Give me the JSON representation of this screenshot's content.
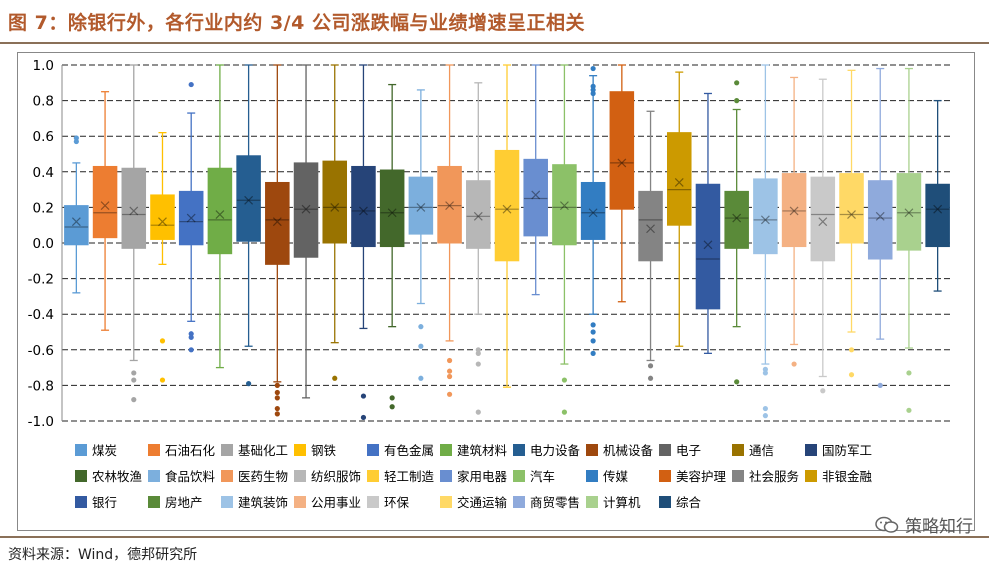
{
  "title": "图 7：除银行外，各行业内约 3/4 公司涨跌幅与业绩增速呈正相关",
  "source": "资料来源：Wind，德邦研究所",
  "watermark": "策略知行",
  "chart_data": {
    "type": "box",
    "ylim": [
      -1.0,
      1.0
    ],
    "yticks": [
      -1.0,
      -0.8,
      -0.6,
      -0.4,
      -0.2,
      0.0,
      0.2,
      0.4,
      0.6,
      0.8,
      1.0
    ],
    "ytick_labels": [
      "-1.0",
      "-0.8",
      "-0.6",
      "-0.4",
      "-0.2",
      "0.0",
      "0.2",
      "0.4",
      "0.6",
      "0.8",
      "1.0"
    ],
    "grid": "dashed-horizontal",
    "legend_position": "bottom",
    "series": [
      {
        "name": "煤炭",
        "color": "#5b9bd5",
        "min": -0.28,
        "q1": -0.01,
        "median": 0.09,
        "mean": 0.12,
        "q3": 0.21,
        "max": 0.45,
        "outliers": [
          0.59,
          0.57
        ]
      },
      {
        "name": "石油石化",
        "color": "#ed7d31",
        "min": -0.49,
        "q1": 0.03,
        "median": 0.17,
        "mean": 0.21,
        "q3": 0.43,
        "max": 0.85,
        "outliers": []
      },
      {
        "name": "基础化工",
        "color": "#a5a5a5",
        "min": -0.66,
        "q1": -0.03,
        "median": 0.16,
        "mean": 0.18,
        "q3": 0.42,
        "max": 1.0,
        "outliers": [
          -0.73,
          -0.77,
          -0.88
        ]
      },
      {
        "name": "钢铁",
        "color": "#ffc000",
        "min": -0.12,
        "q1": 0.02,
        "median": 0.1,
        "mean": 0.12,
        "q3": 0.27,
        "max": 0.62,
        "outliers": [
          -0.55,
          -0.77
        ]
      },
      {
        "name": "有色金属",
        "color": "#4472c4",
        "min": -0.44,
        "q1": -0.01,
        "median": 0.12,
        "mean": 0.14,
        "q3": 0.29,
        "max": 0.73,
        "outliers": [
          0.89,
          -0.51,
          -0.53,
          -0.6
        ]
      },
      {
        "name": "建筑材料",
        "color": "#70ad47",
        "min": -0.7,
        "q1": -0.06,
        "median": 0.13,
        "mean": 0.16,
        "q3": 0.42,
        "max": 1.0,
        "outliers": []
      },
      {
        "name": "电力设备",
        "color": "#255e91",
        "min": -0.58,
        "q1": 0.01,
        "median": 0.24,
        "mean": 0.24,
        "q3": 0.49,
        "max": 1.0,
        "outliers": [
          -0.79
        ]
      },
      {
        "name": "机械设备",
        "color": "#9e480e",
        "min": -0.78,
        "q1": -0.12,
        "median": 0.13,
        "mean": 0.12,
        "q3": 0.34,
        "max": 1.0,
        "outliers": [
          -0.8,
          -0.84,
          -0.87,
          -0.93,
          -0.96
        ]
      },
      {
        "name": "电子",
        "color": "#636363",
        "min": -0.87,
        "q1": -0.08,
        "median": 0.19,
        "mean": 0.19,
        "q3": 0.45,
        "max": 1.0,
        "outliers": []
      },
      {
        "name": "通信",
        "color": "#997300",
        "min": -0.56,
        "q1": 0.0,
        "median": 0.2,
        "mean": 0.2,
        "q3": 0.46,
        "max": 1.0,
        "outliers": [
          -0.76
        ]
      },
      {
        "name": "国防军工",
        "color": "#264478",
        "min": -0.48,
        "q1": -0.02,
        "median": 0.18,
        "mean": 0.18,
        "q3": 0.43,
        "max": 1.0,
        "outliers": [
          -0.86,
          -0.98
        ]
      },
      {
        "name": "农林牧渔",
        "color": "#43682b",
        "min": -0.47,
        "q1": -0.02,
        "median": 0.17,
        "mean": 0.17,
        "q3": 0.41,
        "max": 0.89,
        "outliers": [
          -0.87,
          -0.92
        ]
      },
      {
        "name": "食品饮料",
        "color": "#7cafdd",
        "min": -0.34,
        "q1": 0.05,
        "median": 0.2,
        "mean": 0.2,
        "q3": 0.37,
        "max": 0.86,
        "outliers": [
          -0.47,
          -0.58,
          -0.76
        ]
      },
      {
        "name": "医药生物",
        "color": "#f1975a",
        "min": -0.55,
        "q1": 0.0,
        "median": 0.21,
        "mean": 0.21,
        "q3": 0.43,
        "max": 1.0,
        "outliers": [
          -0.66,
          -0.72,
          -0.75,
          -0.85
        ]
      },
      {
        "name": "纺织服饰",
        "color": "#b7b7b7",
        "min": -0.4,
        "q1": -0.03,
        "median": 0.15,
        "mean": 0.15,
        "q3": 0.35,
        "max": 0.9,
        "outliers": [
          -0.6,
          -0.62,
          -0.68,
          -0.95
        ]
      },
      {
        "name": "轻工制造",
        "color": "#ffcd33",
        "min": -0.81,
        "q1": -0.1,
        "median": 0.19,
        "mean": 0.19,
        "q3": 0.52,
        "max": 1.0,
        "outliers": []
      },
      {
        "name": "家用电器",
        "color": "#698ed0",
        "min": -0.29,
        "q1": 0.04,
        "median": 0.25,
        "mean": 0.27,
        "q3": 0.47,
        "max": 1.0,
        "outliers": []
      },
      {
        "name": "汽车",
        "color": "#8cc168",
        "min": -0.68,
        "q1": -0.01,
        "median": 0.2,
        "mean": 0.21,
        "q3": 0.44,
        "max": 1.0,
        "outliers": [
          -0.77,
          -0.95
        ]
      },
      {
        "name": "传媒",
        "color": "#327dc2",
        "min": -0.4,
        "q1": 0.02,
        "median": 0.17,
        "mean": 0.17,
        "q3": 0.34,
        "max": 0.94,
        "outliers": [
          0.98,
          0.88,
          0.86,
          0.84,
          -0.46,
          -0.5,
          -0.55,
          -0.62
        ]
      },
      {
        "name": "美容护理",
        "color": "#d26012",
        "min": -0.33,
        "q1": 0.19,
        "median": 0.45,
        "mean": 0.45,
        "q3": 0.85,
        "max": 1.0,
        "outliers": []
      },
      {
        "name": "社会服务",
        "color": "#848484",
        "min": -0.66,
        "q1": -0.1,
        "median": 0.13,
        "mean": 0.08,
        "q3": 0.29,
        "max": 0.74,
        "outliers": [
          -0.69,
          -0.76
        ]
      },
      {
        "name": "非银金融",
        "color": "#cc9a00",
        "min": -0.58,
        "q1": 0.1,
        "median": 0.3,
        "mean": 0.34,
        "q3": 0.62,
        "max": 0.96,
        "outliers": []
      },
      {
        "name": "银行",
        "color": "#335aa1",
        "min": -0.62,
        "q1": -0.37,
        "median": -0.09,
        "mean": -0.01,
        "q3": 0.33,
        "max": 0.84,
        "outliers": []
      },
      {
        "name": "房地产",
        "color": "#5a8a39",
        "min": -0.47,
        "q1": -0.03,
        "median": 0.14,
        "mean": 0.14,
        "q3": 0.29,
        "max": 0.75,
        "outliers": [
          0.9,
          0.8,
          -0.78
        ]
      },
      {
        "name": "建筑装饰",
        "color": "#9dc3e6",
        "min": -0.68,
        "q1": -0.06,
        "median": 0.13,
        "mean": 0.13,
        "q3": 0.36,
        "max": 1.0,
        "outliers": [
          -0.71,
          -0.73,
          -0.93,
          -0.97
        ]
      },
      {
        "name": "公用事业",
        "color": "#f4b183",
        "min": -0.57,
        "q1": -0.02,
        "median": 0.18,
        "mean": 0.18,
        "q3": 0.39,
        "max": 0.93,
        "outliers": [
          -0.68
        ]
      },
      {
        "name": "环保",
        "color": "#c9c9c9",
        "min": -0.75,
        "q1": -0.1,
        "median": 0.16,
        "mean": 0.12,
        "q3": 0.37,
        "max": 0.92,
        "outliers": [
          -0.83
        ]
      },
      {
        "name": "交通运输",
        "color": "#ffd966",
        "min": -0.5,
        "q1": 0.0,
        "median": 0.16,
        "mean": 0.16,
        "q3": 0.39,
        "max": 0.97,
        "outliers": [
          -0.6,
          -0.74
        ]
      },
      {
        "name": "商贸零售",
        "color": "#8faadc",
        "min": -0.54,
        "q1": -0.09,
        "median": 0.14,
        "mean": 0.15,
        "q3": 0.35,
        "max": 0.98,
        "outliers": [
          -0.8
        ]
      },
      {
        "name": "计算机",
        "color": "#a9d18e",
        "min": -0.59,
        "q1": -0.04,
        "median": 0.17,
        "mean": 0.17,
        "q3": 0.39,
        "max": 0.98,
        "outliers": [
          -0.73,
          -0.94
        ]
      },
      {
        "name": "综合",
        "color": "#1f4e79",
        "min": -0.27,
        "q1": -0.02,
        "median": 0.19,
        "mean": 0.19,
        "q3": 0.33,
        "max": 0.8,
        "outliers": []
      }
    ]
  }
}
